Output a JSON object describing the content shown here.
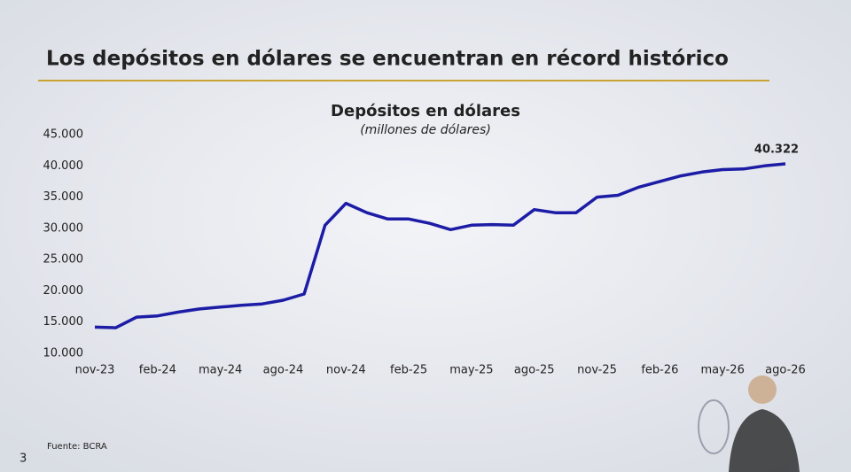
{
  "header": {
    "title": "Los depósitos en dólares se encuentran en récord histórico"
  },
  "chart_data": {
    "type": "line",
    "title": "Depósitos en dólares",
    "subtitle": "(millones de dólares)",
    "categories": [
      "nov-23",
      null,
      null,
      "feb-24",
      null,
      null,
      "may-24",
      null,
      null,
      "ago-24",
      null,
      null,
      "nov-24",
      null,
      null,
      "feb-25",
      null,
      null,
      "may-25",
      null,
      null,
      "ago-25",
      null,
      null,
      "nov-25",
      null,
      null,
      "feb-26",
      null,
      null,
      "may-26",
      null,
      null,
      "ago-26"
    ],
    "series": [
      {
        "name": "Depósitos en dólares",
        "color": "#1c1ca6",
        "values": [
          14200,
          14100,
          15800,
          16000,
          16600,
          17100,
          17400,
          17700,
          17900,
          18500,
          19500,
          30500,
          34000,
          32500,
          31500,
          31500,
          30800,
          29800,
          30500,
          30600,
          30500,
          33000,
          32500,
          32500,
          35000,
          35300,
          36600,
          37500,
          38400,
          39000,
          39400,
          39500,
          40000,
          40322
        ],
        "value_labels": [
          null,
          null,
          null,
          null,
          null,
          null,
          null,
          null,
          null,
          null,
          null,
          null,
          null,
          null,
          null,
          null,
          null,
          null,
          null,
          null,
          null,
          null,
          null,
          null,
          null,
          null,
          null,
          null,
          null,
          null,
          null,
          null,
          null,
          "40.322"
        ]
      }
    ],
    "ylim": [
      10000,
      45000
    ],
    "yticks": [
      {
        "value": 10000,
        "label": "10.000"
      },
      {
        "value": 15000,
        "label": "15.000"
      },
      {
        "value": 20000,
        "label": "20.000"
      },
      {
        "value": 25000,
        "label": "25.000"
      },
      {
        "value": 30000,
        "label": "30.000"
      },
      {
        "value": 35000,
        "label": "35.000"
      },
      {
        "value": 40000,
        "label": "40.000"
      },
      {
        "value": 45000,
        "label": "45.000"
      }
    ],
    "grid": false
  },
  "footer": {
    "source": "Fuente: BCRA",
    "page": "3"
  }
}
